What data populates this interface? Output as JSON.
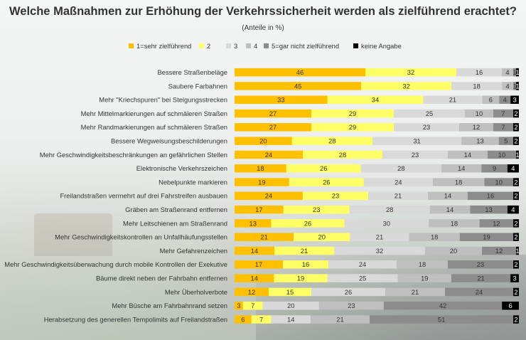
{
  "chart_data": {
    "type": "bar",
    "stacked": true,
    "orientation": "horizontal",
    "title": "Welche Maßnahmen zur Erhöhung der Verkehrssicherheit werden als zielführend erachtet?",
    "subtitle": "(Anteile in %)",
    "xlim": [
      0,
      100
    ],
    "grid": false,
    "legend_position": "top",
    "colors": [
      "#ffc000",
      "#ffff66",
      "#d9d9d9",
      "#bfbfbf",
      "#8c8c8c",
      "#000000"
    ],
    "categories": [
      "Bessere Straßenbeläge",
      "Saubere Farbahnen",
      "Mehr \"Kriechspuren\" bei Steigungsstrecken",
      "Mehr Mittelmarkierungen auf schmäleren Straßen",
      "Mehr Randmarkierungen auf schmäleren Straßen",
      "Bessere Wegweisungsbeschilderungen",
      "Mehr Geschwindigkeitsbeschränkungen an gefährlichen Stellen",
      "Elektronische Verkehrszeichen",
      "Nebelpunkte markieren",
      "Freilandstraßen vermehrt auf drei Fahrstreifen ausbauen",
      "Gräben am Straßenrand entfernen",
      "Mehr Leitschienen am Straßenrand",
      "Mehr Geschwindigkeitskontrollen an Unfallhäufungsstellen",
      "Mehr Gefahrenzeichen",
      "Mehr Geschwindigkeitsüberwachung durch mobile Kontrollen der Exekutive",
      "Bäume direkt neben der Fahrbahn entfernen",
      "Mehr Überholverbote",
      "Mehr Büsche am Fahrbahnrand setzen",
      "Herabsetzung des generellen Tempolimits auf Freilandstraßen"
    ],
    "series": [
      {
        "name": "1=sehr zielführend",
        "values": [
          46,
          45,
          33,
          27,
          27,
          20,
          24,
          18,
          19,
          24,
          17,
          13,
          21,
          14,
          17,
          14,
          12,
          3,
          6
        ]
      },
      {
        "name": "2",
        "values": [
          32,
          32,
          34,
          29,
          29,
          28,
          28,
          26,
          26,
          23,
          23,
          26,
          20,
          21,
          16,
          19,
          15,
          7,
          7
        ]
      },
      {
        "name": "3",
        "values": [
          16,
          18,
          21,
          25,
          23,
          31,
          23,
          28,
          24,
          21,
          28,
          30,
          21,
          32,
          24,
          25,
          26,
          20,
          14
        ]
      },
      {
        "name": "4",
        "values": [
          4,
          4,
          6,
          10,
          12,
          13,
          14,
          14,
          18,
          14,
          14,
          18,
          18,
          20,
          18,
          19,
          21,
          23,
          21
        ]
      },
      {
        "name": "5=gar nicht zielführend",
        "values": [
          1,
          1,
          4,
          7,
          7,
          5,
          10,
          9,
          10,
          16,
          13,
          12,
          19,
          12,
          23,
          21,
          24,
          42,
          51
        ]
      },
      {
        "name": "keine Angabe",
        "values": [
          1,
          1,
          3,
          2,
          2,
          2,
          1,
          4,
          2,
          2,
          4,
          2,
          2,
          1,
          2,
          3,
          2,
          6,
          2
        ]
      }
    ]
  }
}
